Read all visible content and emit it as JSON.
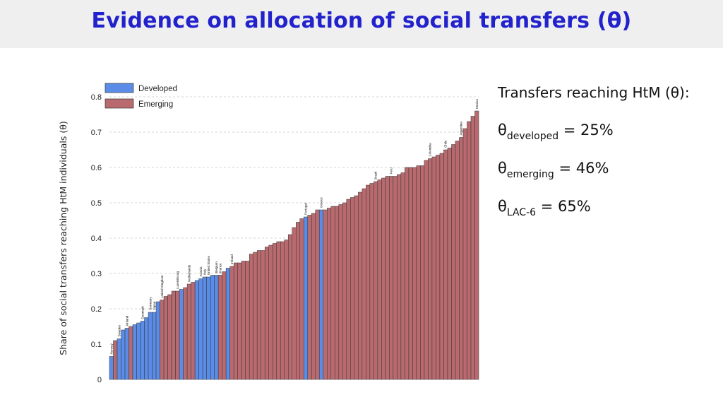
{
  "title": "Evidence on allocation of social transfers (θ)",
  "side_panel": {
    "heading": "Transfers reaching HtM (θ):",
    "lines": [
      {
        "sym": "θ",
        "sub": "developed",
        "value": " = 25%"
      },
      {
        "sym": "θ",
        "sub": "emerging",
        "value": " = 46%"
      },
      {
        "sym": "θ",
        "sub": "LAC-6",
        "value": " = 65%"
      }
    ]
  },
  "colors": {
    "developed": "#5b8de8",
    "emerging": "#b86a6f",
    "title": "#2222cc"
  },
  "chart_data": {
    "type": "bar",
    "ylabel": "Share of social transfers reaching HtM individuals (θ)",
    "ylim": [
      0,
      0.8
    ],
    "yticks": [
      "0",
      "0.1",
      "0.2",
      "0.3",
      "0.4",
      "0.5",
      "0.6",
      "0.7",
      "0.8"
    ],
    "grid": true,
    "legend_position": "top-left",
    "legend": [
      {
        "name": "Developed",
        "group": "developed"
      },
      {
        "name": "Emerging",
        "group": "emerging"
      }
    ],
    "values": [
      0.065,
      0.11,
      0.115,
      0.14,
      0.145,
      0.15,
      0.155,
      0.16,
      0.165,
      0.175,
      0.19,
      0.19,
      0.22,
      0.225,
      0.235,
      0.24,
      0.25,
      0.25,
      0.255,
      0.26,
      0.27,
      0.275,
      0.28,
      0.285,
      0.29,
      0.29,
      0.295,
      0.295,
      0.295,
      0.305,
      0.315,
      0.32,
      0.33,
      0.33,
      0.335,
      0.335,
      0.355,
      0.36,
      0.365,
      0.365,
      0.375,
      0.38,
      0.385,
      0.39,
      0.39,
      0.395,
      0.41,
      0.43,
      0.445,
      0.455,
      0.46,
      0.465,
      0.47,
      0.48,
      0.48,
      0.48,
      0.485,
      0.49,
      0.49,
      0.495,
      0.5,
      0.51,
      0.515,
      0.52,
      0.53,
      0.54,
      0.55,
      0.555,
      0.56,
      0.565,
      0.57,
      0.575,
      0.575,
      0.575,
      0.58,
      0.585,
      0.6,
      0.6,
      0.6,
      0.605,
      0.605,
      0.62,
      0.625,
      0.63,
      0.635,
      0.64,
      0.65,
      0.655,
      0.665,
      0.675,
      0.685,
      0.71,
      0.73,
      0.745,
      0.76
    ],
    "groups": [
      "developed",
      "emerging",
      "developed",
      "developed",
      "developed",
      "emerging",
      "developed",
      "developed",
      "developed",
      "developed",
      "developed",
      "developed",
      "developed",
      "emerging",
      "emerging",
      "emerging",
      "emerging",
      "emerging",
      "developed",
      "emerging",
      "emerging",
      "emerging",
      "developed",
      "developed",
      "developed",
      "developed",
      "developed",
      "developed",
      "emerging",
      "emerging",
      "developed",
      "emerging",
      "emerging",
      "emerging",
      "emerging",
      "emerging",
      "emerging",
      "emerging",
      "emerging",
      "emerging",
      "emerging",
      "emerging",
      "emerging",
      "emerging",
      "emerging",
      "emerging",
      "emerging",
      "emerging",
      "emerging",
      "emerging",
      "developed",
      "emerging",
      "emerging",
      "emerging",
      "developed",
      "emerging",
      "emerging",
      "emerging",
      "emerging",
      "emerging",
      "emerging",
      "emerging",
      "emerging",
      "emerging",
      "emerging",
      "emerging",
      "emerging",
      "emerging",
      "emerging",
      "emerging",
      "emerging",
      "emerging",
      "emerging",
      "emerging",
      "emerging",
      "emerging",
      "emerging",
      "emerging",
      "emerging",
      "emerging",
      "emerging",
      "emerging",
      "emerging",
      "emerging",
      "emerging",
      "emerging",
      "emerging",
      "emerging",
      "emerging",
      "emerging",
      "emerging",
      "emerging",
      "emerging",
      "emerging",
      "emerging"
    ],
    "bar_labels": [
      {
        "index": 0,
        "text": "Norway"
      },
      {
        "index": 2,
        "text": "Sweden"
      },
      {
        "index": 4,
        "text": "Finland"
      },
      {
        "index": 8,
        "text": "Denmark"
      },
      {
        "index": 10,
        "text": "Germany"
      },
      {
        "index": 11,
        "text": "Japan"
      },
      {
        "index": 13,
        "text": "United Kingdom"
      },
      {
        "index": 17,
        "text": "Luxembourg"
      },
      {
        "index": 20,
        "text": "Netherlands"
      },
      {
        "index": 23,
        "text": "Austria"
      },
      {
        "index": 24,
        "text": "Italy"
      },
      {
        "index": 25,
        "text": "United States"
      },
      {
        "index": 27,
        "text": "Belgium"
      },
      {
        "index": 28,
        "text": "France"
      },
      {
        "index": 31,
        "text": "Ireland"
      },
      {
        "index": 50,
        "text": "Portugal"
      },
      {
        "index": 54,
        "text": "Greece"
      },
      {
        "index": 68,
        "text": "Brazil"
      },
      {
        "index": 72,
        "text": "Peru"
      },
      {
        "index": 82,
        "text": "Colombia"
      },
      {
        "index": 86,
        "text": "Chile"
      },
      {
        "index": 90,
        "text": "Argentina"
      },
      {
        "index": 94,
        "text": "Mexico"
      }
    ]
  }
}
